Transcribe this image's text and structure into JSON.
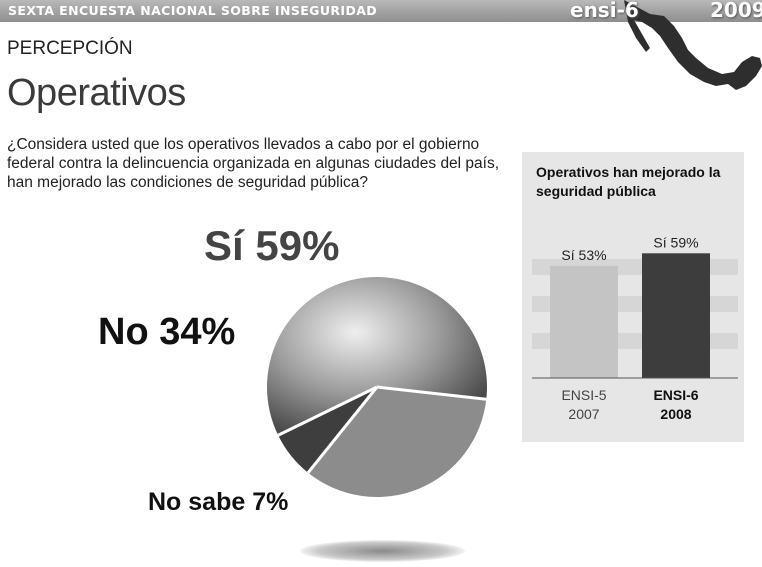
{
  "header": {
    "banner": "SEXTA ENCUESTA NACIONAL SOBRE INSEGURIDAD",
    "logo": "ensi-6",
    "year": "2009"
  },
  "section": "PERCEPCIÓN",
  "title": "Operativos",
  "question": "¿Considera usted que los operativos llevados a cabo por el gobierno federal contra la delincuencia organizada en algunas ciudades del país, han mejorado las condiciones de seguridad pública?",
  "pie_labels": {
    "si": "Sí 59%",
    "no": "No 34%",
    "no_sabe": "No sabe 7%"
  },
  "bar_panel": {
    "title": "Operativos han mejorado la seguridad pública"
  },
  "colors": {
    "bar_2007": "#c4c4c4",
    "bar_2008": "#3d3d3d",
    "panel": "#e6e6e6"
  },
  "chart_data": [
    {
      "type": "pie",
      "categories": [
        "Sí",
        "No",
        "No sabe"
      ],
      "values": [
        59,
        34,
        7
      ],
      "labels": [
        "Sí 59%",
        "No 34%",
        "No sabe 7%"
      ]
    },
    {
      "type": "bar",
      "title": "Operativos han mejorado la seguridad pública",
      "categories": [
        "ENSI-5 2007",
        "ENSI-6 2008"
      ],
      "category_lines": [
        [
          "ENSI-5",
          "2007"
        ],
        [
          "ENSI-6",
          "2008"
        ]
      ],
      "values": [
        53,
        59
      ],
      "labels": [
        "Sí 53%",
        "Sí 59%"
      ],
      "ylim": [
        0,
        70
      ]
    }
  ]
}
